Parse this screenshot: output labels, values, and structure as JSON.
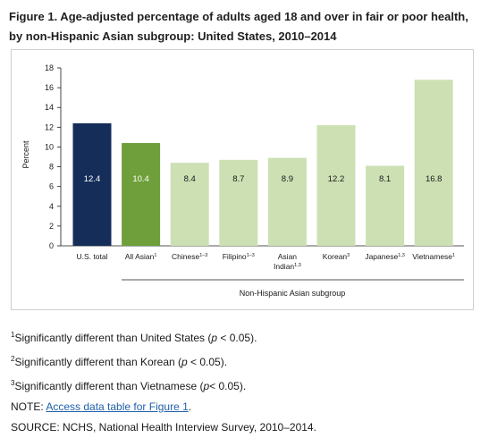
{
  "title": "Figure 1. Age-adjusted percentage of adults aged 18 and over in fair or poor health, by non-Hispanic Asian subgroup: United States, 2010–2014",
  "colors": {
    "us_total": "#152d59",
    "all_asian": "#6f9f3a",
    "subgroup": "#cce0b4",
    "value_label_dark_bg": "#ffffff",
    "value_label_light_bg": "#1a1a1a"
  },
  "chart_data": {
    "type": "bar",
    "title": "",
    "xlabel": "",
    "ylabel": "Percent",
    "ylim": [
      0,
      18
    ],
    "yticks": [
      0,
      2,
      4,
      6,
      8,
      10,
      12,
      14,
      16,
      18
    ],
    "grid": false,
    "legend": "none",
    "categories": [
      {
        "label": "U.S. total",
        "sup": "",
        "second_line": "",
        "second_sup": ""
      },
      {
        "label": "All Asian",
        "sup": "1",
        "second_line": "",
        "second_sup": ""
      },
      {
        "label": "Chinese",
        "sup": "1–3",
        "second_line": "",
        "second_sup": ""
      },
      {
        "label": "Filipino",
        "sup": "1–3",
        "second_line": "",
        "second_sup": ""
      },
      {
        "label": "Asian",
        "sup": "",
        "second_line": "Indian",
        "second_sup": "1,3"
      },
      {
        "label": "Korean",
        "sup": "3",
        "second_line": "",
        "second_sup": ""
      },
      {
        "label": "Japanese",
        "sup": "1,3",
        "second_line": "",
        "second_sup": ""
      },
      {
        "label": "Vietnamese",
        "sup": "1",
        "second_line": "",
        "second_sup": ""
      }
    ],
    "values": [
      12.4,
      10.4,
      8.4,
      8.7,
      8.9,
      12.2,
      8.1,
      16.8
    ],
    "value_labels": [
      "12.4",
      "10.4",
      "8.4",
      "8.7",
      "8.9",
      "12.2",
      "8.1",
      "16.8"
    ],
    "bar_color_keys": [
      "us_total",
      "all_asian",
      "subgroup",
      "subgroup",
      "subgroup",
      "subgroup",
      "subgroup",
      "subgroup"
    ],
    "group_label": "Non-Hispanic Asian subgroup"
  },
  "notes": {
    "fn1_sup": "1",
    "fn1_text": "Significantly different than United States (",
    "fn2_sup": "2",
    "fn2_text": "Significantly different than Korean (",
    "fn3_sup": "3",
    "fn3_text": "Significantly different than Vietnamese (",
    "p_symbol": "p",
    "p_tail1": " < 0.05).",
    "p_tail2": " < 0.05).",
    "p_tail3": "< 0.05).",
    "note_prefix": "NOTE: ",
    "note_link": "Access data table for Figure 1",
    "note_suffix": ".",
    "source": "SOURCE: NCHS, National Health Interview Survey, 2010–2014."
  }
}
